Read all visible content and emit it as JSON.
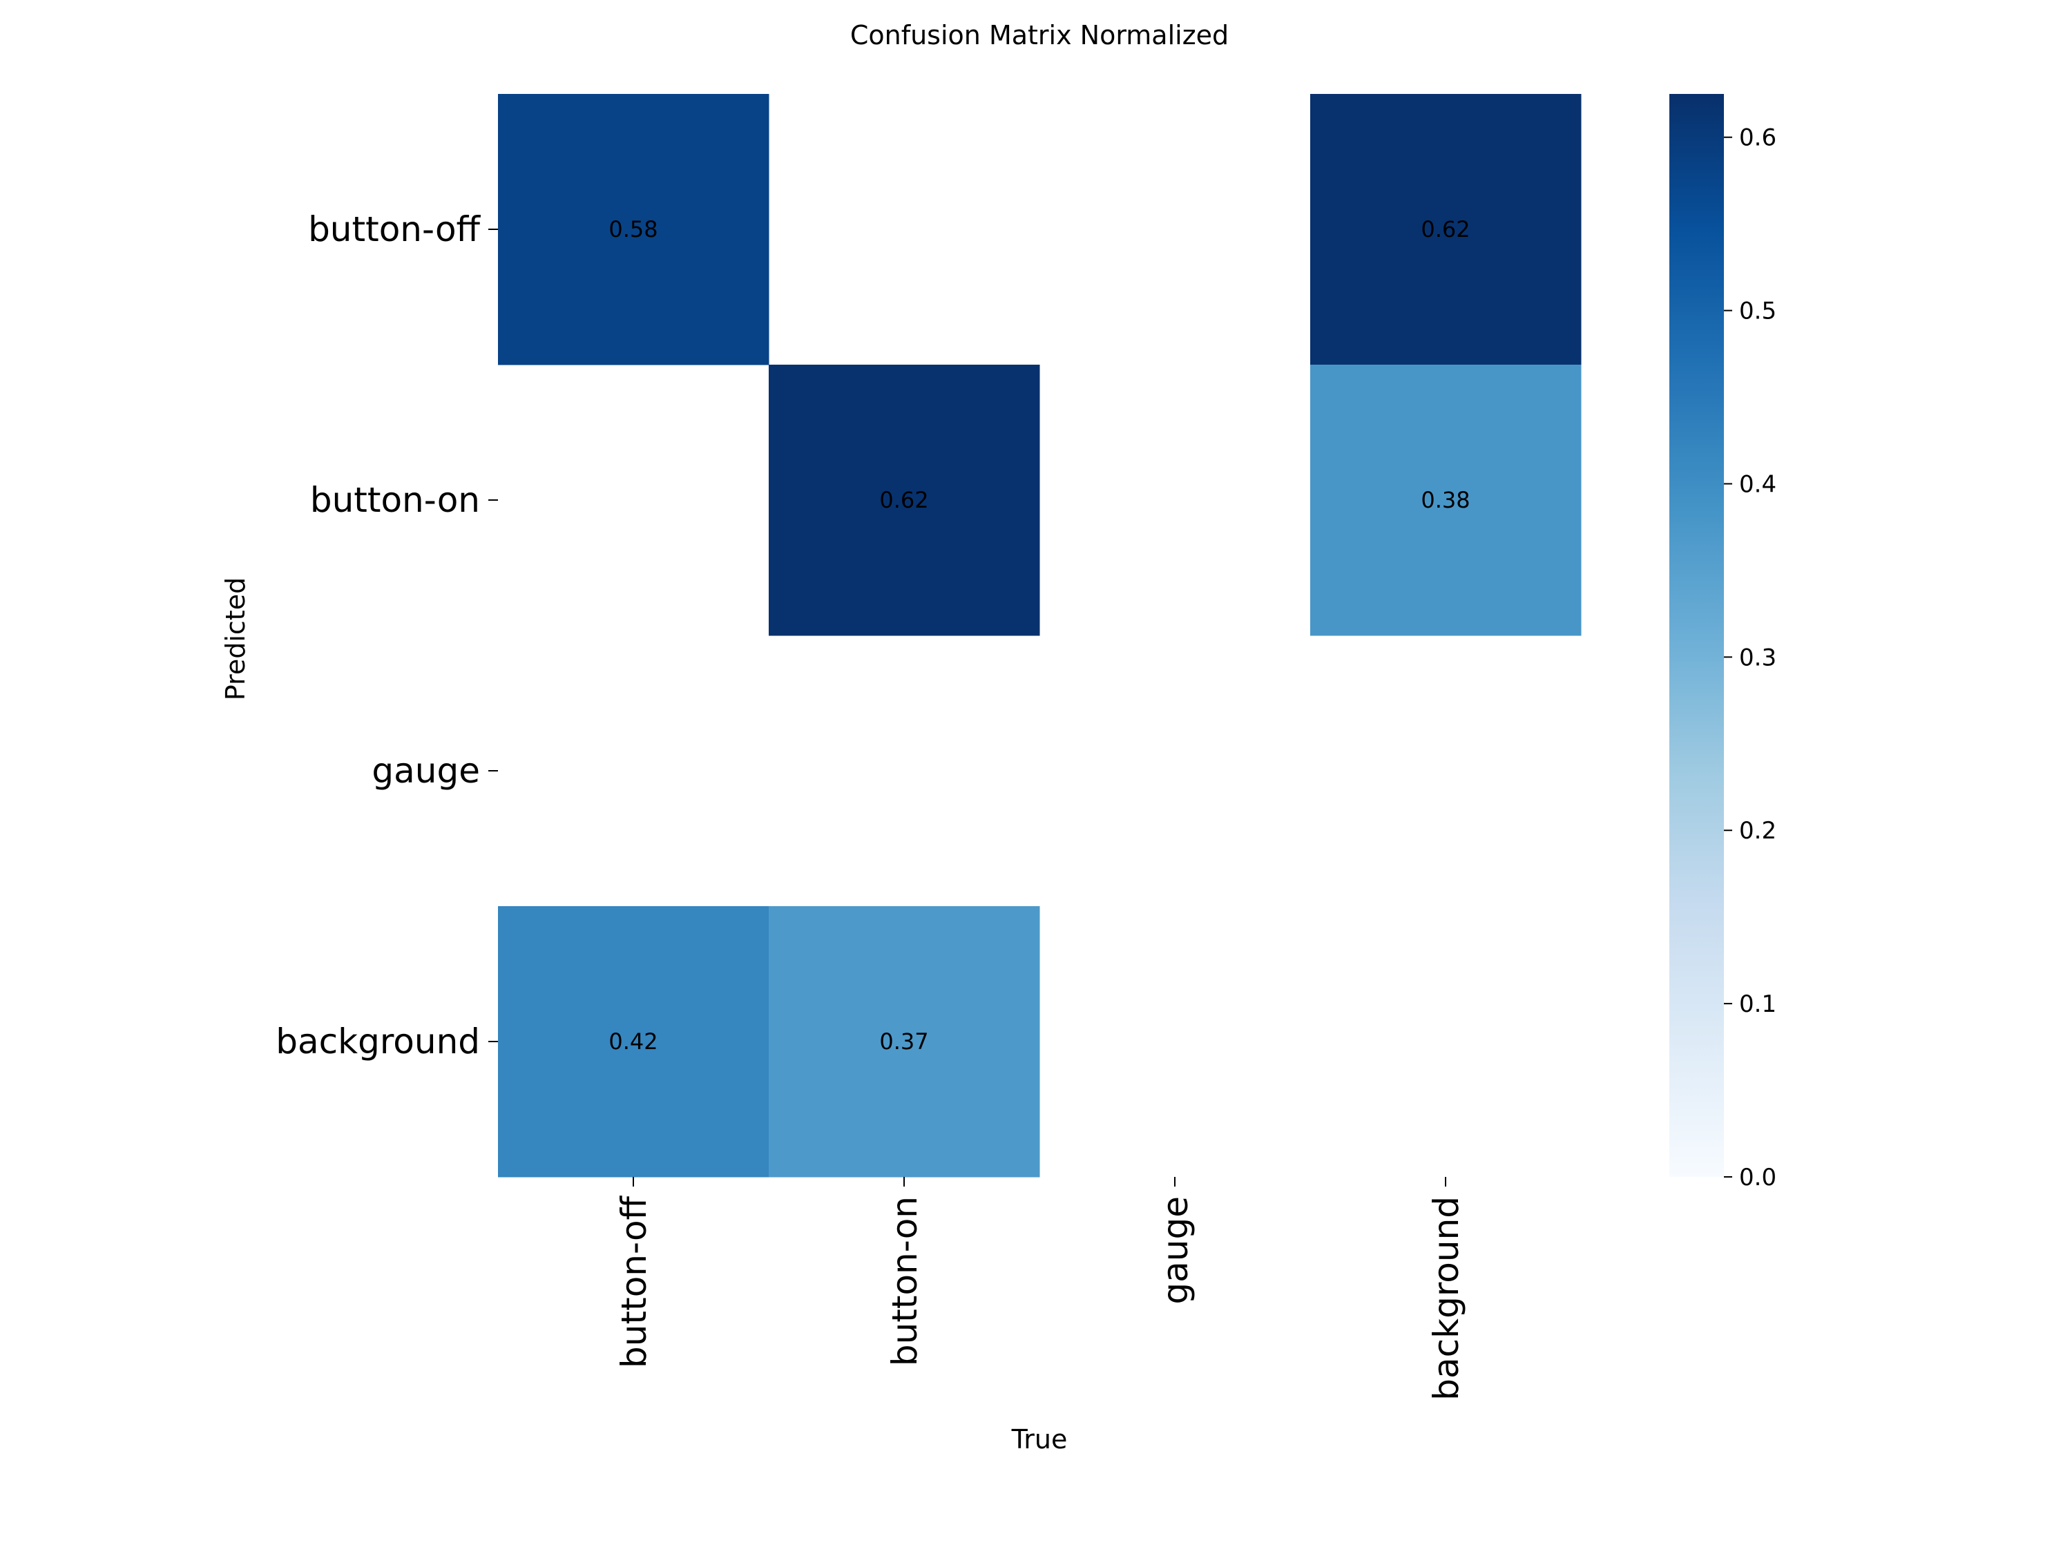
{
  "chart_data": {
    "type": "heatmap",
    "title": "Confusion Matrix Normalized",
    "xlabel": "True",
    "ylabel": "Predicted",
    "x_categories": [
      "button-off",
      "button-on",
      "gauge",
      "background"
    ],
    "y_categories": [
      "button-off",
      "button-on",
      "gauge",
      "background"
    ],
    "matrix": [
      [
        0.58,
        null,
        null,
        0.62
      ],
      [
        null,
        0.62,
        null,
        0.38
      ],
      [
        null,
        null,
        null,
        null
      ],
      [
        0.42,
        0.37,
        null,
        null
      ]
    ],
    "colormap": "Blues",
    "colorbar": {
      "range": [
        0,
        0.625
      ],
      "ticks": [
        0.0,
        0.1,
        0.2,
        0.3,
        0.4,
        0.5,
        0.6
      ],
      "tick_labels": [
        "0.0",
        "0.1",
        "0.2",
        "0.3",
        "0.4",
        "0.5",
        "0.6"
      ]
    },
    "cell_labels": [
      [
        "0.58",
        "",
        "",
        "0.62"
      ],
      [
        "",
        "0.62",
        "",
        "0.38"
      ],
      [
        "",
        "",
        "",
        ""
      ],
      [
        "0.42",
        "0.37",
        "",
        ""
      ]
    ],
    "grid": false
  }
}
